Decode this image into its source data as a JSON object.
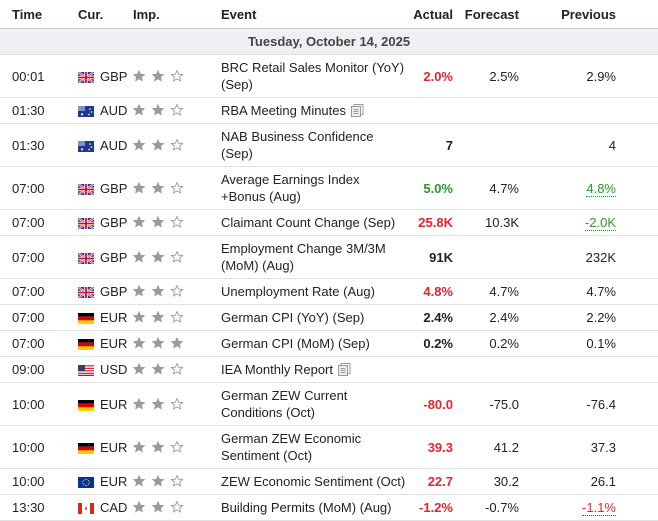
{
  "header": {
    "columns": [
      "Time",
      "Cur.",
      "Imp.",
      "Event",
      "Actual",
      "Forecast",
      "Previous"
    ]
  },
  "date": "Tuesday, October 14, 2025",
  "rows": [
    {
      "time": "00:01",
      "currency": "GBP",
      "importance": 2,
      "event": "BRC Retail Sales Monitor (YoY) (Sep)",
      "actual": "2.0%",
      "actual_color": "#e0262d",
      "forecast": "2.5%",
      "previous": "2.9%"
    },
    {
      "time": "01:30",
      "currency": "AUD",
      "importance": 2,
      "event": "RBA Meeting Minutes",
      "report_icon": true,
      "actual": null,
      "forecast": null,
      "previous": null
    },
    {
      "time": "01:30",
      "currency": "AUD",
      "importance": 2,
      "event": "NAB Business Confidence (Sep)",
      "actual": "7",
      "forecast": null,
      "previous": "4"
    },
    {
      "time": "07:00",
      "currency": "GBP",
      "importance": 2,
      "event": "Average Earnings Index +Bonus (Aug)",
      "actual": "5.0%",
      "actual_color": "#2a9a2a",
      "forecast": "4.7%",
      "previous": "4.8%",
      "previous_color": "#2a9a2a",
      "previous_revised": true
    },
    {
      "time": "07:00",
      "currency": "GBP",
      "importance": 2,
      "event": "Claimant Count Change (Sep)",
      "actual": "25.8K",
      "actual_color": "#e0262d",
      "forecast": "10.3K",
      "previous": "-2.0K",
      "previous_color": "#2a9a2a",
      "previous_revised": true
    },
    {
      "time": "07:00",
      "currency": "GBP",
      "importance": 2,
      "event": "Employment Change 3M/3M (MoM) (Aug)",
      "actual": "91K",
      "forecast": null,
      "previous": "232K"
    },
    {
      "time": "07:00",
      "currency": "GBP",
      "importance": 2,
      "event": "Unemployment Rate (Aug)",
      "actual": "4.8%",
      "actual_color": "#e0262d",
      "forecast": "4.7%",
      "previous": "4.7%"
    },
    {
      "time": "07:00",
      "currency": "EUR",
      "importance": 2,
      "event": "German CPI (YoY) (Sep)",
      "actual": "2.4%",
      "forecast": "2.4%",
      "previous": "2.2%"
    },
    {
      "time": "07:00",
      "currency": "EUR",
      "importance": 3,
      "event": "German CPI (MoM) (Sep)",
      "actual": "0.2%",
      "forecast": "0.2%",
      "previous": "0.1%"
    },
    {
      "time": "09:00",
      "currency": "USD",
      "importance": 2,
      "event": "IEA Monthly Report",
      "report_icon": true,
      "actual": null,
      "forecast": null,
      "previous": null
    },
    {
      "time": "10:00",
      "currency": "EUR",
      "importance": 2,
      "event": "German ZEW Current Conditions (Oct)",
      "actual": "-80.0",
      "actual_color": "#e0262d",
      "forecast": "-75.0",
      "previous": "-76.4"
    },
    {
      "time": "10:00",
      "currency": "EUR",
      "importance": 2,
      "event": "German ZEW Economic Sentiment (Oct)",
      "actual": "39.3",
      "actual_color": "#e0262d",
      "forecast": "41.2",
      "previous": "37.3"
    },
    {
      "time": "10:00",
      "currency": "EUR",
      "importance": 2,
      "event": "ZEW Economic Sentiment (Oct)",
      "actual": "22.7",
      "actual_color": "#e0262d",
      "forecast": "30.2",
      "previous": "26.1"
    },
    {
      "time": "13:30",
      "currency": "CAD",
      "importance": 2,
      "event": "Building Permits (MoM) (Aug)",
      "actual": "-1.2%",
      "actual_color": "#e0262d",
      "forecast": "-0.7%",
      "previous": "-1.1%",
      "previous_color": "#e0262d",
      "previous_revised": true
    }
  ]
}
